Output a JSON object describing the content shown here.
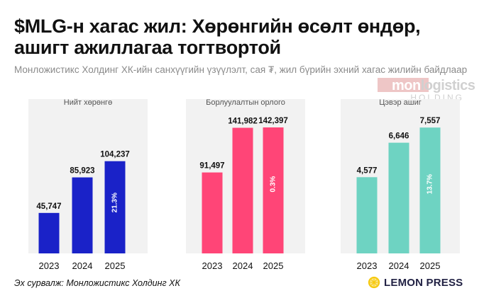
{
  "title": "$MLG-н хагас жил: Хөрөнгийн өсөлт өндөр, ашигт ажиллагаа тогтвортой",
  "subtitle": "Монложистикс Холдинг ХК-ийн санхүүгийн үзүүлэлт, сая ₮, жил бүрийн эхний хагас жилийн байдлаар",
  "logo": {
    "word_main": "mon",
    "word_tail": "logistics",
    "sub": "HOLDING"
  },
  "source": "Эх сурвалж: Монложистикс Холдинг ХК",
  "brand": {
    "name": "LEMON PRESS"
  },
  "colors": {
    "assets": "#1a22c8",
    "sales": "#ff4577",
    "profit": "#6ed3c2",
    "panel_bg": "#f2f2f2"
  },
  "chart_data": [
    {
      "type": "bar",
      "title": "Нийт хөрөнгө",
      "categories": [
        "2023",
        "2024",
        "2025"
      ],
      "values": [
        45747,
        85923,
        104237
      ],
      "value_labels": [
        "45,747",
        "85,923",
        "104,237"
      ],
      "growth_label": "21.3%",
      "ylim": [
        0,
        160000
      ],
      "color": "#1a22c8"
    },
    {
      "type": "bar",
      "title": "Борлуулалтын орлого",
      "categories": [
        "2023",
        "2024",
        "2025"
      ],
      "values": [
        91497,
        141982,
        142397
      ],
      "value_labels": [
        "91,497",
        "141,982",
        "142,397"
      ],
      "growth_label": "0.3%",
      "ylim": [
        0,
        160000
      ],
      "color": "#ff4577"
    },
    {
      "type": "bar",
      "title": "Цэвэр ашиг",
      "categories": [
        "2023",
        "2024",
        "2025"
      ],
      "values": [
        4577,
        6646,
        7557
      ],
      "value_labels": [
        "4,577",
        "6,646",
        "7,557"
      ],
      "growth_label": "13.7%",
      "ylim": [
        0,
        8500
      ],
      "color": "#6ed3c2"
    }
  ]
}
